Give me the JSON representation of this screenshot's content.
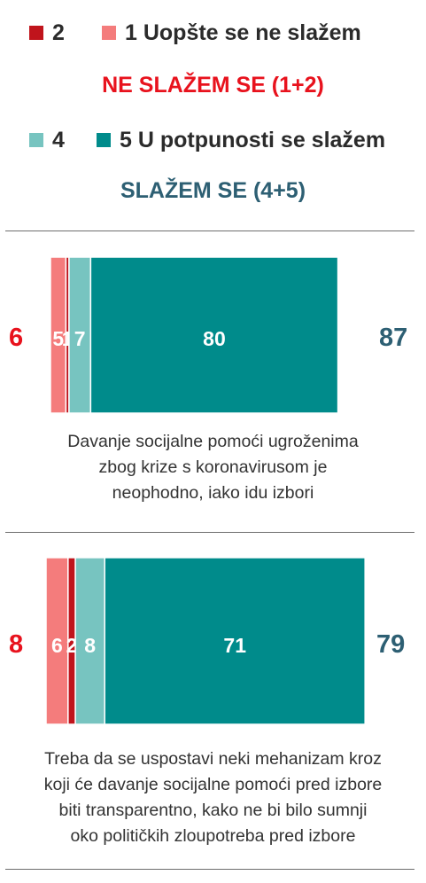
{
  "legend": {
    "row1": [
      {
        "label": "2",
        "color": "#c0141c"
      },
      {
        "label": "1 Uopšte se ne slažem",
        "color": "#f47c7c"
      }
    ],
    "group1": {
      "label": "NE SLAŽEM SE (1+2)",
      "color": "#e8121d"
    },
    "row2": [
      {
        "label": "4",
        "color": "#77c4c0"
      },
      {
        "label": "5 U potpunosti se slažem",
        "color": "#008b8b"
      }
    ],
    "group2": {
      "label": "SLAŽEM SE (4+5)",
      "color": "#2d5f73"
    }
  },
  "chart_data": {
    "type": "bar",
    "orientation": "horizontal",
    "stacked": true,
    "segment_order": [
      "1 Uopšte se ne slažem",
      "2",
      "4",
      "5 U potpunosti se slažem"
    ],
    "items": [
      {
        "caption": [
          "Davanje socijalne pomoći ugroženima",
          "zbog krize s koronavirusom je",
          "neophodno, iako idu izbori"
        ],
        "segments": [
          {
            "series": "1 Uopšte se ne slažem",
            "value": 5,
            "label": "5",
            "color": "#f47c7c"
          },
          {
            "series": "2",
            "value": 1,
            "label": "1",
            "color": "#c0141c"
          },
          {
            "series": "4",
            "value": 7,
            "label": "7",
            "color": "#77c4c0"
          },
          {
            "series": "5 U potpunosti se slažem",
            "value": 80,
            "label": "80",
            "color": "#008b8b"
          }
        ],
        "disagree_total": "6",
        "agree_total": "87"
      },
      {
        "caption": [
          "Treba da se uspostavi neki mehanizam kroz",
          "koji će davanje socijalne pomoći pred izbore",
          "biti transparentno, kako ne bi bilo sumnji",
          "oko političkih zloupotreba pred izbore"
        ],
        "segments": [
          {
            "series": "1 Uopšte se ne slažem",
            "value": 6,
            "label": "6",
            "color": "#f47c7c"
          },
          {
            "series": "2",
            "value": 2,
            "label": "2",
            "color": "#c0141c"
          },
          {
            "series": "4",
            "value": 8,
            "label": "8",
            "color": "#77c4c0"
          },
          {
            "series": "5 U potpunosti se slažem",
            "value": 71,
            "label": "71",
            "color": "#008b8b"
          }
        ],
        "disagree_total": "8",
        "agree_total": "79"
      }
    ],
    "totals_colors": {
      "disagree": "#e8121d",
      "agree": "#2d5f73"
    }
  }
}
